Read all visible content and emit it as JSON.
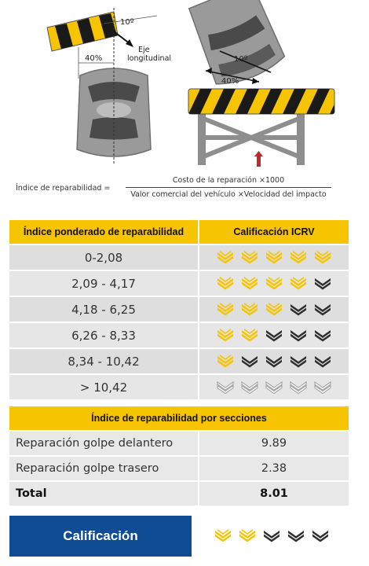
{
  "illustration": {
    "angle_label": "10º",
    "axis_label_line1": "Eje",
    "axis_label_line2": "longitudinal",
    "overlap_left": "40%",
    "angle_label_right": "10º",
    "overlap_right": "40%"
  },
  "formula": {
    "lhs": "Índice de reparabilidad =",
    "numerator": "Costo de la reparación ×1000",
    "denominator": "Valor comercial del vehículo ×Velocidad del impacto"
  },
  "rating_table": {
    "header_left": "Índice ponderado de reparabilidad",
    "header_right": "Calificación ICRV",
    "rows": [
      {
        "range": "0-2,08",
        "filled": 5
      },
      {
        "range": "2,09 - 4,17",
        "filled": 4
      },
      {
        "range": "4,18 - 6,25",
        "filled": 3
      },
      {
        "range": "6,26 - 8,33",
        "filled": 2
      },
      {
        "range": "8,34 - 10,42",
        "filled": 1
      },
      {
        "range": "> 10,42",
        "filled": 0
      }
    ]
  },
  "sections": {
    "header": "Índice de reparabilidad por secciones",
    "rows": [
      {
        "label": "Reparación golpe delantero",
        "value": "9.89"
      },
      {
        "label": "Reparación golpe trasero",
        "value": "2.38"
      }
    ],
    "total_label": "Total",
    "total_value": "8.01"
  },
  "final": {
    "label": "Calificación",
    "filled": 2
  },
  "colors": {
    "yellow": "#f6c400",
    "blue": "#0f4c94",
    "dark_icon": "#2f2f2f",
    "outline_icon": "#9a9a9a"
  }
}
